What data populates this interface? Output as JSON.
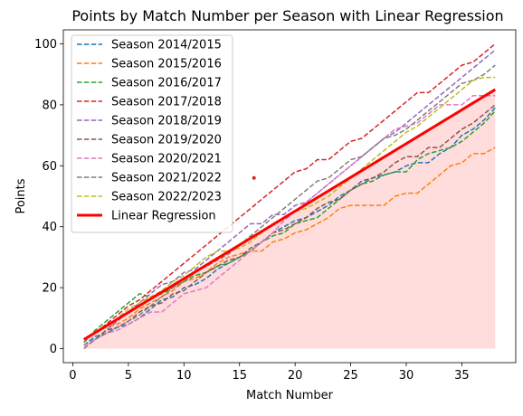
{
  "chart_data": {
    "type": "line",
    "title": "Points by Match Number per Season with Linear Regression",
    "xlabel": "Match Number",
    "ylabel": "Points",
    "xlim": [
      -0.85,
      39.85
    ],
    "ylim": [
      -4.6,
      104.6
    ],
    "xticks": [
      0,
      5,
      10,
      15,
      20,
      25,
      30,
      35
    ],
    "yticks": [
      0,
      20,
      40,
      60,
      80,
      100
    ],
    "grid": false,
    "legend": "upper-left",
    "series": [
      {
        "name": "Season 2014/2015",
        "color": "#1f77b4",
        "style": "dashed",
        "x": [
          1,
          2,
          3,
          4,
          5,
          6,
          7,
          8,
          9,
          10,
          11,
          12,
          13,
          14,
          15,
          16,
          17,
          18,
          19,
          20,
          21,
          22,
          23,
          24,
          25,
          26,
          27,
          28,
          29,
          30,
          31,
          32,
          33,
          34,
          35,
          36,
          37,
          38
        ],
        "y": [
          1,
          4,
          5,
          7,
          8,
          10,
          13,
          16,
          17,
          20,
          21,
          23,
          26,
          28,
          30,
          32,
          35,
          38,
          40,
          42,
          43,
          45,
          47,
          50,
          52,
          55,
          56,
          57,
          58,
          60,
          61,
          61,
          64,
          66,
          70,
          72,
          75,
          79
        ]
      },
      {
        "name": "Season 2015/2016",
        "color": "#ff7f0e",
        "style": "dashed",
        "x": [
          1,
          2,
          3,
          4,
          5,
          6,
          7,
          8,
          9,
          10,
          11,
          12,
          13,
          14,
          15,
          16,
          17,
          18,
          19,
          20,
          21,
          22,
          23,
          24,
          25,
          26,
          27,
          28,
          29,
          30,
          31,
          32,
          33,
          34,
          35,
          36,
          37,
          38
        ],
        "y": [
          3,
          5,
          7,
          8,
          10,
          13,
          15,
          17,
          19,
          22,
          23,
          25,
          28,
          30,
          31,
          32,
          32,
          35,
          36,
          38,
          39,
          41,
          43,
          46,
          47,
          47,
          47,
          47,
          50,
          51,
          51,
          54,
          57,
          60,
          61,
          64,
          64,
          66
        ]
      },
      {
        "name": "Season 2016/2017",
        "color": "#2ca02c",
        "style": "dashed",
        "x": [
          1,
          2,
          3,
          4,
          5,
          6,
          7,
          8,
          9,
          10,
          11,
          12,
          13,
          14,
          15,
          16,
          17,
          18,
          19,
          20,
          21,
          22,
          23,
          24,
          25,
          26,
          27,
          28,
          29,
          30,
          31,
          32,
          33,
          34,
          35,
          36,
          37,
          38
        ],
        "y": [
          2,
          6,
          9,
          12,
          15,
          18,
          17,
          18,
          20,
          22,
          24,
          25,
          27,
          28,
          30,
          32,
          35,
          37,
          38,
          41,
          42,
          43,
          46,
          49,
          52,
          54,
          55,
          57,
          58,
          58,
          62,
          64,
          65,
          66,
          68,
          71,
          74,
          78
        ]
      },
      {
        "name": "Season 2017/2018",
        "color": "#d62728",
        "style": "dashed",
        "x": [
          1,
          2,
          3,
          4,
          5,
          6,
          7,
          8,
          9,
          10,
          11,
          12,
          13,
          14,
          15,
          16,
          17,
          18,
          19,
          20,
          21,
          22,
          23,
          24,
          25,
          26,
          27,
          28,
          29,
          30,
          31,
          32,
          33,
          34,
          35,
          36,
          37,
          38
        ],
        "y": [
          3,
          5,
          8,
          11,
          14,
          16,
          19,
          22,
          25,
          28,
          31,
          34,
          37,
          40,
          43,
          46,
          49,
          52,
          55,
          58,
          59,
          62,
          62,
          65,
          68,
          69,
          72,
          75,
          78,
          81,
          84,
          84,
          87,
          90,
          93,
          94,
          97,
          100
        ]
      },
      {
        "name": "Season 2018/2019",
        "color": "#9467bd",
        "style": "dashed",
        "x": [
          1,
          2,
          3,
          4,
          5,
          6,
          7,
          8,
          9,
          10,
          11,
          12,
          13,
          14,
          15,
          16,
          17,
          18,
          19,
          20,
          21,
          22,
          23,
          24,
          25,
          26,
          27,
          28,
          29,
          30,
          31,
          32,
          33,
          34,
          35,
          36,
          37,
          38
        ],
        "y": [
          1,
          3,
          6,
          9,
          12,
          15,
          18,
          21,
          22,
          25,
          26,
          29,
          32,
          35,
          38,
          41,
          41,
          44,
          44,
          47,
          48,
          51,
          54,
          57,
          60,
          63,
          66,
          69,
          71,
          74,
          77,
          80,
          83,
          86,
          89,
          92,
          95,
          98
        ]
      },
      {
        "name": "Season 2019/2020",
        "color": "#8c564b",
        "style": "dashed",
        "x": [
          1,
          2,
          3,
          4,
          5,
          6,
          7,
          8,
          9,
          10,
          11,
          12,
          13,
          14,
          15,
          16,
          17,
          18,
          19,
          20,
          21,
          22,
          23,
          24,
          25,
          26,
          27,
          28,
          29,
          30,
          31,
          32,
          33,
          34,
          35,
          36,
          37,
          38
        ],
        "y": [
          1,
          3,
          6,
          7,
          9,
          12,
          14,
          15,
          18,
          19,
          22,
          25,
          27,
          29,
          30,
          33,
          35,
          38,
          39,
          41,
          43,
          46,
          48,
          49,
          52,
          54,
          56,
          58,
          61,
          63,
          63,
          66,
          66,
          69,
          72,
          74,
          77,
          80
        ]
      },
      {
        "name": "Season 2020/2021",
        "color": "#e377c2",
        "style": "dashed",
        "x": [
          1,
          2,
          3,
          4,
          5,
          6,
          7,
          8,
          9,
          10,
          11,
          12,
          13,
          14,
          15,
          16,
          17,
          18,
          19,
          20,
          21,
          22,
          23,
          24,
          25,
          26,
          27,
          28,
          29,
          30,
          31,
          32,
          33,
          34,
          35,
          36,
          37,
          38
        ],
        "y": [
          1,
          3,
          5,
          6,
          8,
          10,
          12,
          12,
          15,
          18,
          19,
          20,
          23,
          26,
          29,
          32,
          35,
          38,
          42,
          45,
          48,
          51,
          54,
          57,
          60,
          63,
          66,
          69,
          72,
          73,
          74,
          77,
          80,
          80,
          80,
          83,
          83,
          83
        ]
      },
      {
        "name": "Season 2021/2022",
        "color": "#7f7f7f",
        "style": "dashed",
        "x": [
          1,
          2,
          3,
          4,
          5,
          6,
          7,
          8,
          9,
          10,
          11,
          12,
          13,
          14,
          15,
          16,
          17,
          18,
          19,
          20,
          21,
          22,
          23,
          24,
          25,
          26,
          27,
          28,
          29,
          30,
          31,
          32,
          33,
          34,
          35,
          36,
          37,
          38
        ],
        "y": [
          0,
          3,
          5,
          7,
          9,
          11,
          14,
          17,
          20,
          22,
          25,
          27,
          29,
          31,
          34,
          37,
          40,
          43,
          46,
          49,
          52,
          55,
          56,
          59,
          62,
          63,
          66,
          69,
          70,
          72,
          75,
          78,
          81,
          84,
          87,
          88,
          90,
          93
        ]
      },
      {
        "name": "Season 2022/2023",
        "color": "#bcbd22",
        "style": "dashed",
        "x": [
          1,
          2,
          3,
          4,
          5,
          6,
          7,
          8,
          9,
          10,
          11,
          12,
          13,
          14,
          15,
          16,
          17,
          18,
          19,
          20,
          21,
          22,
          23,
          24,
          25,
          26,
          27,
          28,
          29,
          30,
          31,
          32,
          33,
          34,
          35,
          36,
          37,
          38
        ],
        "y": [
          3,
          5,
          7,
          10,
          13,
          15,
          17,
          19,
          22,
          24,
          27,
          30,
          32,
          32,
          33,
          35,
          38,
          41,
          43,
          45,
          46,
          48,
          50,
          53,
          56,
          59,
          62,
          65,
          68,
          71,
          73,
          76,
          79,
          82,
          85,
          88,
          89,
          89
        ]
      },
      {
        "name": "Linear Regression",
        "color": "#ff0000",
        "style": "solid",
        "x": [
          1,
          38
        ],
        "y": [
          3,
          85
        ]
      }
    ],
    "fill": {
      "color": "#ffdddd",
      "x": [
        1,
        38
      ],
      "y_top": [
        3,
        85
      ],
      "y_bottom": [
        0,
        0
      ]
    },
    "points": [
      {
        "x": 16.3,
        "y": 56,
        "color": "#d62728"
      }
    ]
  }
}
